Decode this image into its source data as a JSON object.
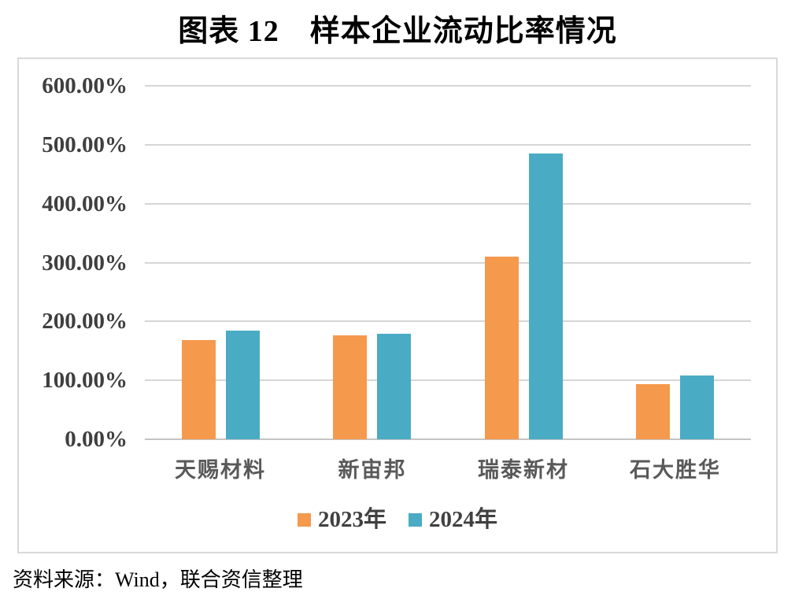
{
  "page": {
    "title": "图表 12　样本企业流动比率情况",
    "source_note": "资料来源：Wind，联合资信整理"
  },
  "chart_data": {
    "type": "bar",
    "title": "图表 12　样本企业流动比率情况",
    "unit": "%",
    "categories": [
      "天赐材料",
      "新宙邦",
      "瑞泰新材",
      "石大胜华"
    ],
    "series": [
      {
        "name": "2023年",
        "color": "#F5994D",
        "values": [
          168,
          177,
          310,
          93
        ]
      },
      {
        "name": "2024年",
        "color": "#4AABC5",
        "values": [
          184,
          179,
          485,
          108
        ]
      }
    ],
    "xlabel": "",
    "ylabel": "",
    "ylim": [
      0,
      600
    ],
    "ytick_step": 100,
    "ytick_labels": [
      "0.00%",
      "100.00%",
      "200.00%",
      "300.00%",
      "400.00%",
      "500.00%",
      "600.00%"
    ],
    "grid": true,
    "legend_position": "bottom"
  },
  "colors": {
    "series_2023": "#F5994D",
    "series_2024": "#4AABC5",
    "gridline": "#D6D6D6",
    "zero_axis_line": "#C4C4C4",
    "frame_border": "#D9D9D9",
    "tick_label": "#3F3F3F",
    "category_label": "#595959",
    "legend_label": "#404040",
    "title_text": "#000000"
  }
}
